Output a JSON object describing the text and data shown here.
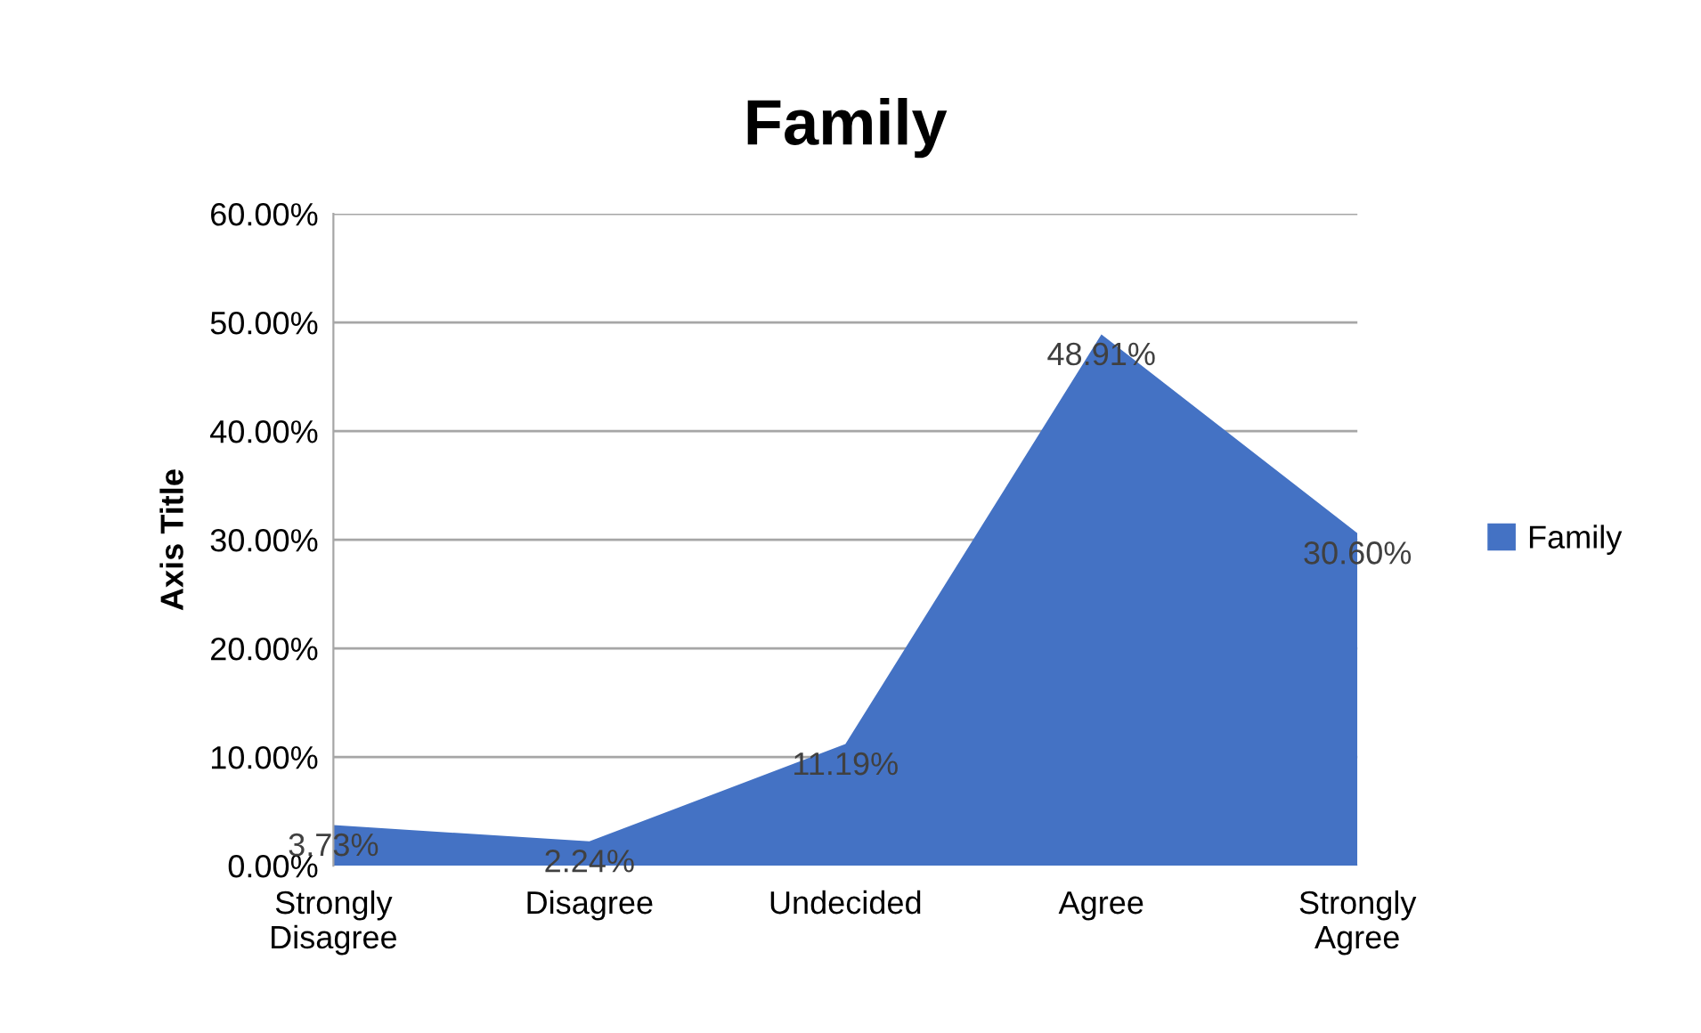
{
  "chart_data": {
    "type": "area",
    "title": "Family",
    "ylabel": "Axis Title",
    "categories": [
      "Strongly\nDisagree",
      "Disagree",
      "Undecided",
      "Agree",
      "Strongly\nAgree"
    ],
    "series": [
      {
        "name": "Family",
        "color": "#4472c4",
        "values": [
          3.73,
          2.24,
          11.19,
          48.91,
          30.6
        ],
        "value_labels": [
          "3.73%",
          "2.24%",
          "11.19%",
          "48.91%",
          "30.60%"
        ]
      }
    ],
    "ylim": [
      0,
      60
    ],
    "yticks": [
      {
        "value": 0,
        "label": "0.00%"
      },
      {
        "value": 10,
        "label": "10.00%"
      },
      {
        "value": 20,
        "label": "20.00%"
      },
      {
        "value": 30,
        "label": "30.00%"
      },
      {
        "value": 40,
        "label": "40.00%"
      },
      {
        "value": 50,
        "label": "50.00%"
      },
      {
        "value": 60,
        "label": "60.00%"
      }
    ],
    "grid": "y",
    "legend": "right"
  }
}
